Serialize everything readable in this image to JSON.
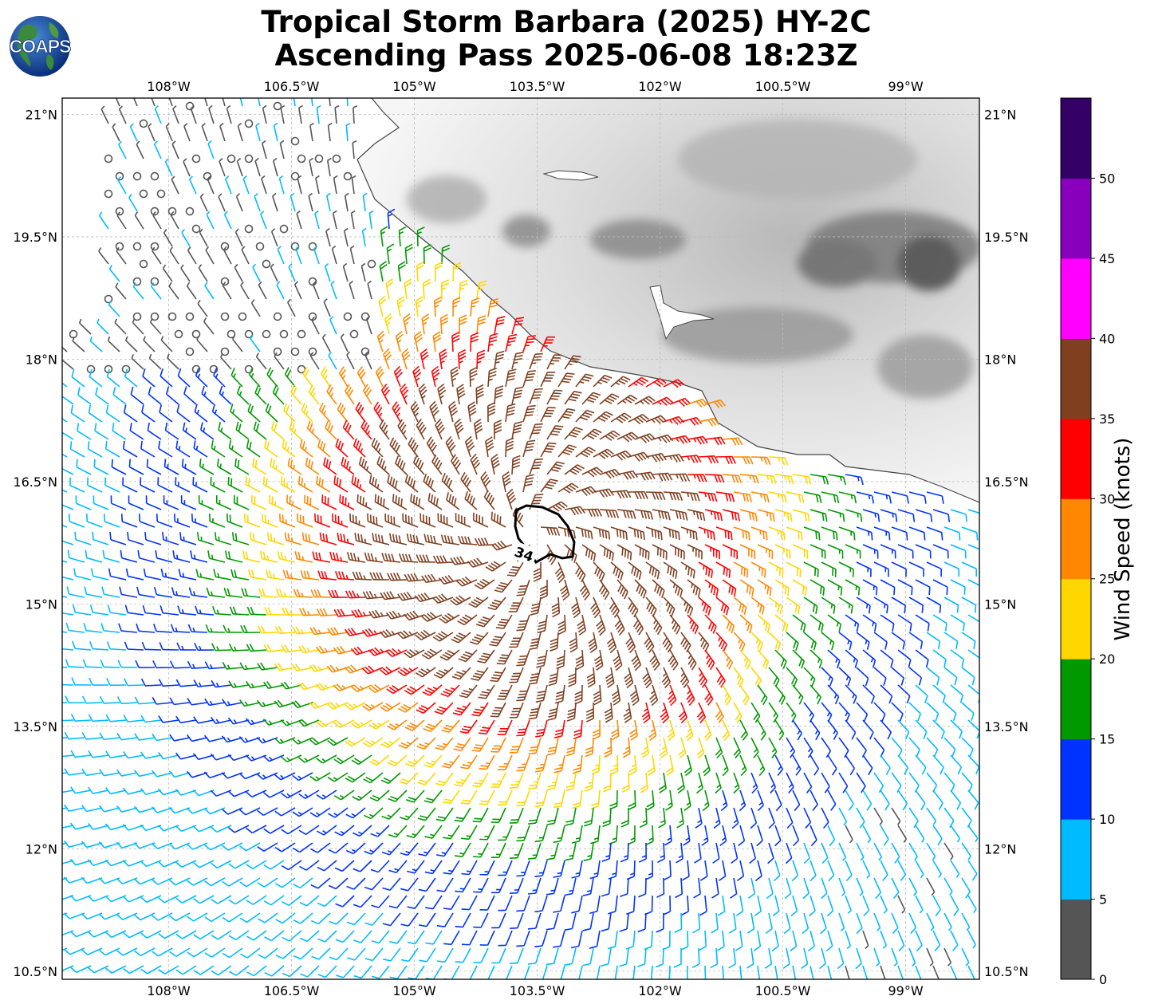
{
  "title_line1": "Tropical Storm Barbara (2025) HY-2C",
  "title_line2": "Ascending Pass 2025-06-08 18:23Z",
  "logo_text": "COAPS",
  "lon_ticks": [
    "108°W",
    "106.5°W",
    "105°W",
    "103.5°W",
    "102°W",
    "100.5°W",
    "99°W"
  ],
  "lat_ticks": [
    "21°N",
    "19.5°N",
    "18°N",
    "16.5°N",
    "15°N",
    "13.5°N",
    "12°N",
    "10.5°N"
  ],
  "contour_label": "34",
  "colorbar": {
    "title": "Wind Speed (knots)",
    "ticks": [
      "0",
      "5",
      "10",
      "15",
      "20",
      "25",
      "30",
      "35",
      "40",
      "45",
      "50"
    ],
    "colors": [
      "#555555",
      "#00bbff",
      "#0033ff",
      "#009900",
      "#ffd700",
      "#ff8800",
      "#ff0000",
      "#804020",
      "#ff00ff",
      "#8800bb",
      "#330066"
    ]
  },
  "storm_center": {
    "lon": -103.6,
    "lat": 15.9
  },
  "map_extent": {
    "lon": [
      -109.3,
      -98.1
    ],
    "lat": [
      10.4,
      21.2
    ]
  }
}
